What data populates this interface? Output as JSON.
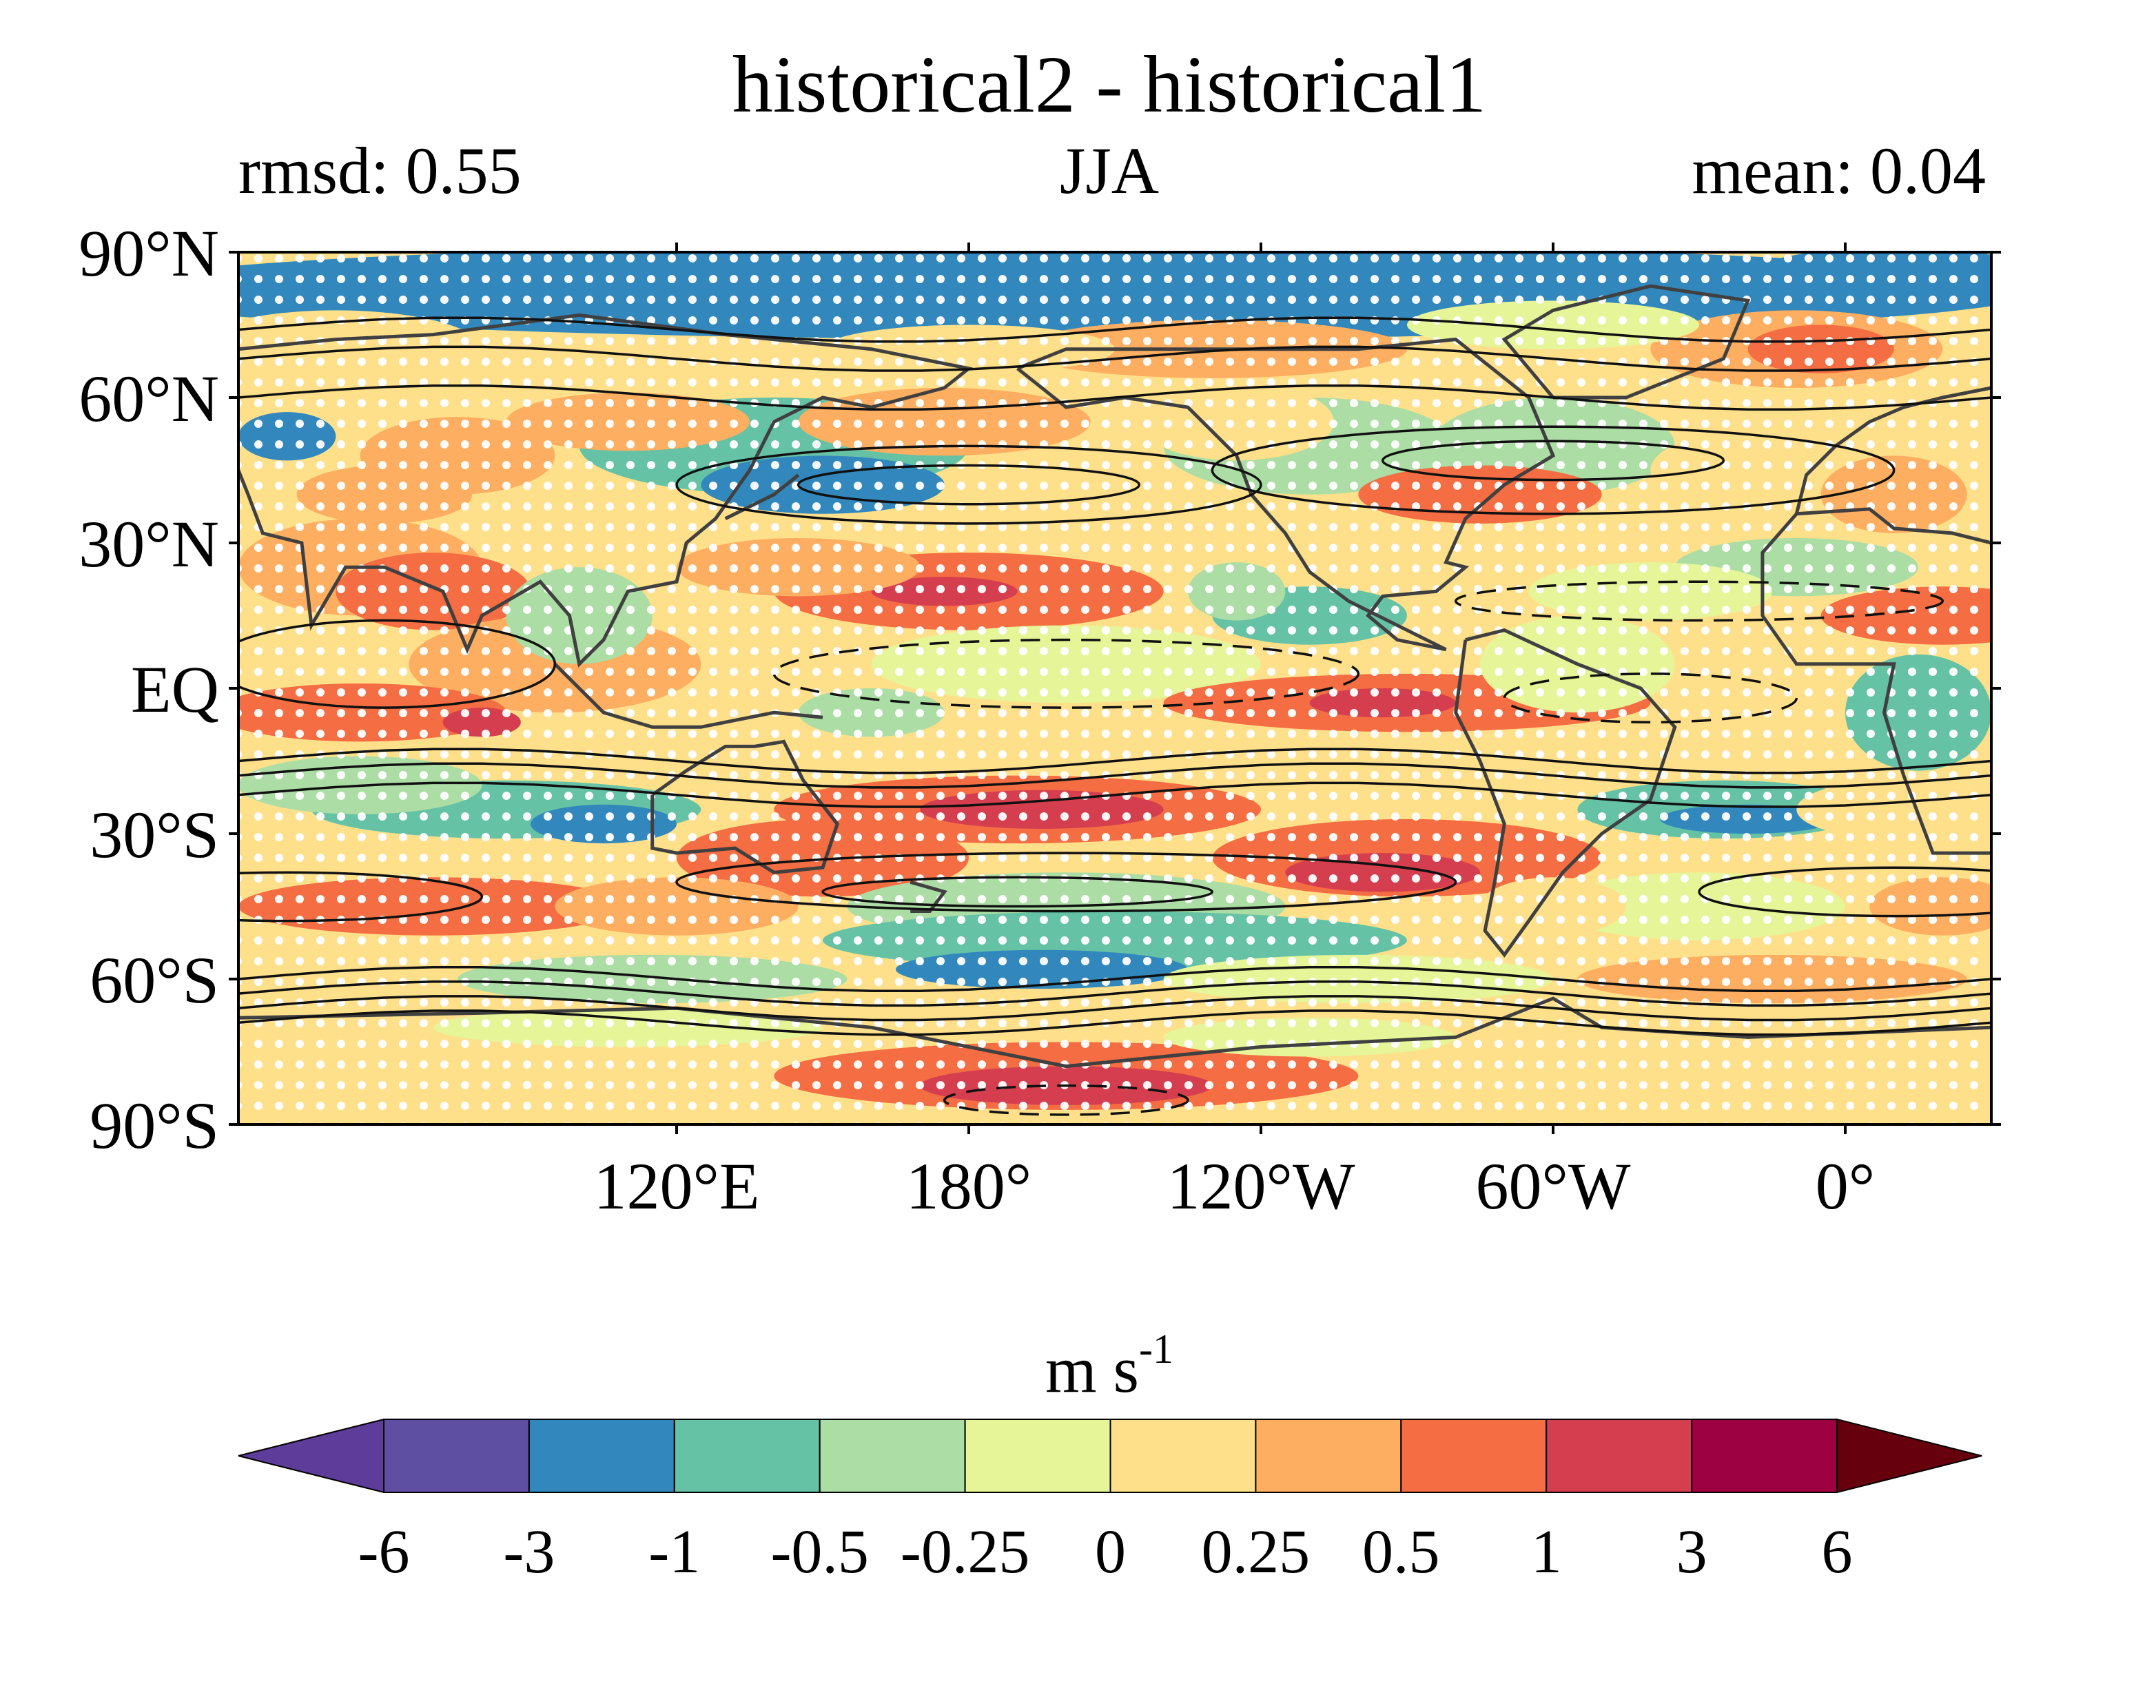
{
  "header": {
    "title": "historical2 - historical1",
    "left_label": "rmsd: 0.55",
    "center_label": "JJA",
    "right_label": "mean: 0.04"
  },
  "map": {
    "lat_ticks": [
      {
        "lat": 90,
        "label": "90°N"
      },
      {
        "lat": 60,
        "label": "60°N"
      },
      {
        "lat": 30,
        "label": "30°N"
      },
      {
        "lat": 0,
        "label": "EQ"
      },
      {
        "lat": -30,
        "label": "30°S"
      },
      {
        "lat": -60,
        "label": "60°S"
      },
      {
        "lat": -90,
        "label": "90°S"
      }
    ],
    "lon_range": [
      0,
      360
    ],
    "lon_ticks": [
      {
        "lon": 120,
        "label": "120°E"
      },
      {
        "lon": 180,
        "label": "180°"
      },
      {
        "lon": 240,
        "label": "120°W"
      },
      {
        "lon": 300,
        "label": "60°W"
      },
      {
        "lon": 360,
        "label": "0°"
      }
    ],
    "stippling": "significance dots",
    "overlay": "climatology contours, dashed negative",
    "coastlines": true
  },
  "colorbar": {
    "units_base": "m s",
    "units_exp": "-1",
    "boundaries": [
      "-6",
      "-3",
      "-1",
      "-0.5",
      "-0.25",
      "0",
      "0.25",
      "0.5",
      "1",
      "3",
      "6"
    ],
    "colors": [
      "#5e3c99",
      "#5f4fa2",
      "#3288bd",
      "#66c2a5",
      "#abdda4",
      "#e6f598",
      "#fee08b",
      "#fdae61",
      "#f46d43",
      "#d53e4f",
      "#9e0142",
      "#67000d"
    ],
    "extend": "both"
  }
}
